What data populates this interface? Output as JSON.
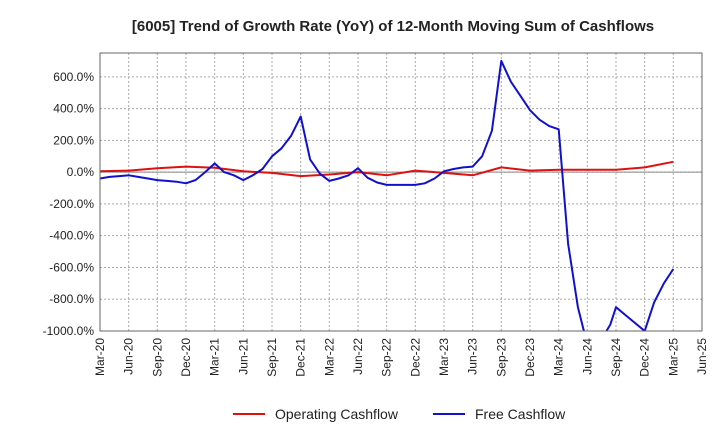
{
  "chart_data": {
    "type": "line",
    "title": "[6005]  Trend of Growth Rate (YoY) of 12-Month Moving Sum of Cashflows",
    "xlabel": "",
    "ylabel": "",
    "x_tick_labels": [
      "Mar-20",
      "Jun-20",
      "Sep-20",
      "Dec-20",
      "Mar-21",
      "Jun-21",
      "Sep-21",
      "Dec-21",
      "Mar-22",
      "Jun-22",
      "Sep-22",
      "Dec-22",
      "Mar-23",
      "Jun-23",
      "Sep-23",
      "Dec-23",
      "Mar-24",
      "Jun-24",
      "Sep-24",
      "Dec-24",
      "Mar-25",
      "Jun-25"
    ],
    "y_tick_labels": [
      "600.0%",
      "400.0%",
      "200.0%",
      "0.0%",
      "-200.0%",
      "-400.0%",
      "-600.0%",
      "-800.0%",
      "-1000.0%"
    ],
    "y_ticks": [
      600,
      400,
      200,
      0,
      -200,
      -400,
      -600,
      -800,
      -1000
    ],
    "ylim": [
      -1000,
      750
    ],
    "grid": true,
    "legend_position": "bottom",
    "series": [
      {
        "name": "Operating Cashflow",
        "color": "#dd1111",
        "points": [
          [
            0,
            5
          ],
          [
            1,
            10
          ],
          [
            2,
            25
          ],
          [
            3,
            35
          ],
          [
            4,
            28
          ],
          [
            5,
            5
          ],
          [
            6,
            -5
          ],
          [
            7,
            -25
          ],
          [
            8,
            -15
          ],
          [
            9,
            0
          ],
          [
            10,
            -20
          ],
          [
            11,
            10
          ],
          [
            12,
            -5
          ],
          [
            13,
            -20
          ],
          [
            14,
            30
          ],
          [
            15,
            10
          ],
          [
            16,
            15
          ],
          [
            17,
            15
          ],
          [
            18,
            15
          ],
          [
            19,
            30
          ],
          [
            20,
            65
          ]
        ]
      },
      {
        "name": "Free Cashflow",
        "color": "#1111cc",
        "points": [
          [
            0,
            -40
          ],
          [
            0.33,
            -30
          ],
          [
            0.67,
            -25
          ],
          [
            1,
            -20
          ],
          [
            1.33,
            -30
          ],
          [
            1.67,
            -40
          ],
          [
            2,
            -50
          ],
          [
            2.33,
            -55
          ],
          [
            2.67,
            -60
          ],
          [
            3,
            -70
          ],
          [
            3.33,
            -50
          ],
          [
            3.67,
            0
          ],
          [
            4,
            55
          ],
          [
            4.33,
            0
          ],
          [
            4.67,
            -20
          ],
          [
            5,
            -50
          ],
          [
            5.33,
            -20
          ],
          [
            5.67,
            20
          ],
          [
            6,
            100
          ],
          [
            6.33,
            150
          ],
          [
            6.67,
            230
          ],
          [
            7,
            350
          ],
          [
            7.33,
            80
          ],
          [
            7.67,
            -10
          ],
          [
            8,
            -55
          ],
          [
            8.33,
            -40
          ],
          [
            8.67,
            -20
          ],
          [
            9,
            25
          ],
          [
            9.33,
            -35
          ],
          [
            9.67,
            -65
          ],
          [
            10,
            -80
          ],
          [
            10.33,
            -80
          ],
          [
            10.67,
            -80
          ],
          [
            11,
            -80
          ],
          [
            11.33,
            -70
          ],
          [
            11.67,
            -40
          ],
          [
            12,
            5
          ],
          [
            12.33,
            20
          ],
          [
            12.67,
            30
          ],
          [
            13,
            35
          ],
          [
            13.33,
            100
          ],
          [
            13.67,
            260
          ],
          [
            14,
            700
          ],
          [
            14.33,
            570
          ],
          [
            14.67,
            480
          ],
          [
            15,
            390
          ],
          [
            15.33,
            330
          ],
          [
            15.67,
            290
          ],
          [
            16,
            270
          ],
          [
            16.33,
            -450
          ],
          [
            16.67,
            -850
          ],
          [
            16.95,
            -1050
          ],
          [
            17.5,
            -1050
          ],
          [
            17.8,
            -960
          ],
          [
            18,
            -850
          ],
          [
            18.33,
            -900
          ],
          [
            18.67,
            -950
          ],
          [
            19,
            -1000
          ],
          [
            19.33,
            -820
          ],
          [
            19.67,
            -700
          ],
          [
            20,
            -610
          ]
        ]
      }
    ]
  }
}
